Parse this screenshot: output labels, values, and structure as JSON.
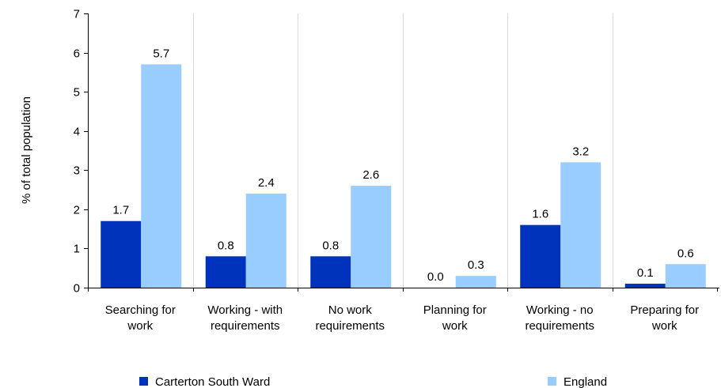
{
  "chart_data": {
    "type": "bar",
    "title": "",
    "xlabel": "",
    "ylabel": "% of total population",
    "ylim": [
      0,
      7
    ],
    "yticks": [
      0,
      1,
      2,
      3,
      4,
      5,
      6,
      7
    ],
    "grid": "vertical separators between categories",
    "legend_position": "bottom",
    "categories": [
      [
        "Searching for",
        "work"
      ],
      [
        "Working - with",
        "requirements"
      ],
      [
        "No work",
        "requirements"
      ],
      [
        "Planning for",
        "work"
      ],
      [
        "Working - no",
        "requirements"
      ],
      [
        "Preparing for",
        "work"
      ]
    ],
    "series": [
      {
        "name": "Carterton South Ward",
        "color": "#0033bb",
        "values": [
          1.7,
          0.8,
          0.8,
          0.0,
          1.6,
          0.1
        ],
        "labels": [
          "1.7",
          "0.8",
          "0.8",
          "0.0",
          "1.6",
          "0.1"
        ]
      },
      {
        "name": "England",
        "color": "#99ccff",
        "values": [
          5.7,
          2.4,
          2.6,
          0.3,
          3.2,
          0.6
        ],
        "labels": [
          "5.7",
          "2.4",
          "2.6",
          "0.3",
          "3.2",
          "0.6"
        ]
      }
    ]
  }
}
